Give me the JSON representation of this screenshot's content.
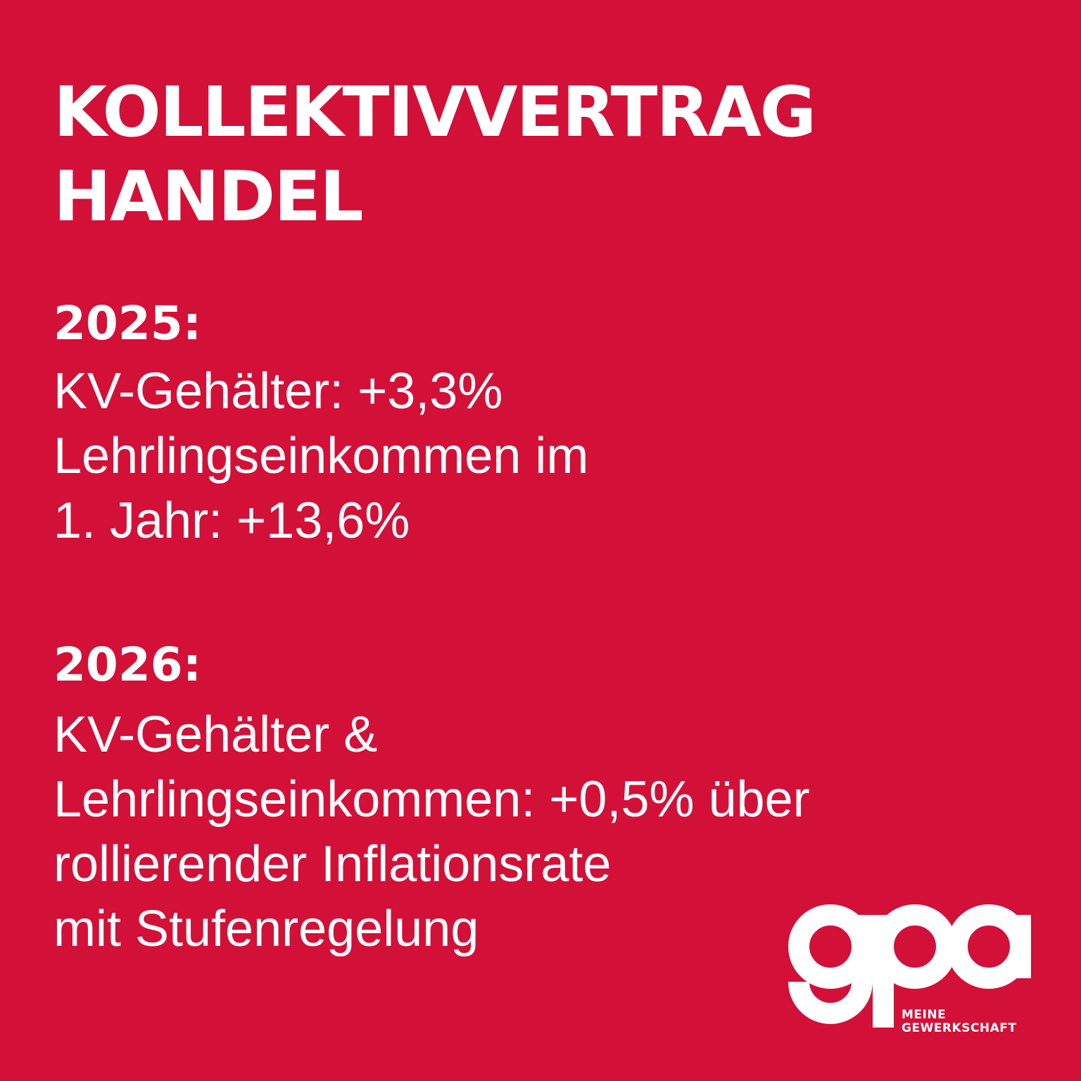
{
  "title": {
    "line1": "KOLLEKTIVVERTRAG",
    "line2": "HANDEL"
  },
  "section_2025": {
    "heading": "2025:",
    "lines": [
      "KV-Gehälter: +3,3%",
      "Lehrlingseinkommen im",
      "1. Jahr: +13,6%"
    ]
  },
  "section_2026": {
    "heading": "2026:",
    "lines": [
      "KV-Gehälter &",
      "Lehrlingseinkommen: +0,5% über",
      "rollierender Inflationsrate",
      "mit Stufenregelung"
    ]
  },
  "logo": {
    "text": "gpa",
    "tagline_line1": "MEINE",
    "tagline_line2": "GEWERKSCHAFT"
  },
  "colors": {
    "background": "#d31038",
    "text": "#ffffff"
  }
}
